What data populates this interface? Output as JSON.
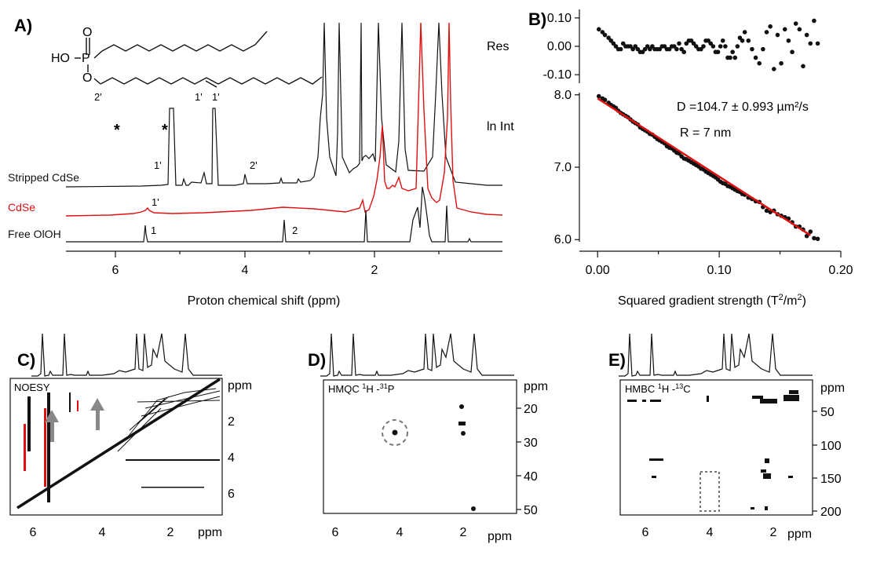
{
  "panels": {
    "A": {
      "letter": "A)",
      "structure": {
        "head": "HO",
        "p_label": "P",
        "o_top": "O",
        "o_bottom": "O",
        "label_2p": "2'",
        "label_1p_a": "1'",
        "label_1p_b": "1'"
      },
      "traces": [
        {
          "name": "Stripped CdSe",
          "color": "#111111"
        },
        {
          "name": "CdSe",
          "color": "#e01010"
        },
        {
          "name": "Free OlOH",
          "color": "#111111"
        }
      ],
      "annotations": {
        "star_1": "*",
        "star_2": "*",
        "stripped_1p": "1'",
        "stripped_2p": "2'",
        "cdse_1p": "1'",
        "free_1": "1",
        "free_2": "2"
      },
      "x_axis": {
        "label": "Proton chemical shift (ppm)",
        "ticks": [
          "6",
          "4",
          "2"
        ]
      }
    },
    "B": {
      "letter": "B)",
      "res_label": "Res",
      "main_label": "ln Int",
      "res_ticks": [
        "0.10",
        "0.00",
        "-0.10"
      ],
      "main_ticks": [
        "8.0",
        "7.0",
        "6.0"
      ],
      "x_ticks": [
        "0.00",
        "0.10",
        "0.20"
      ],
      "x_label_pre": "Squared gradient strength (T",
      "x_label_sup1": "2",
      "x_label_mid": "/m",
      "x_label_sup2": "2",
      "x_label_post": ")",
      "result_D": "D =104.7 ± 0.993 µm²/s",
      "result_R": "R = 7 nm"
    },
    "C": {
      "letter": "C)",
      "title": "NOESY",
      "unit": "ppm",
      "y_ticks": [
        "2",
        "4",
        "6"
      ],
      "x_ticks": [
        "6",
        "4",
        "2"
      ]
    },
    "D": {
      "letter": "D)",
      "title_pre": "HMQC ",
      "title_sup1": "1",
      "title_mid": "H -",
      "title_sup2": "31",
      "title_post": "P",
      "unit": "ppm",
      "y_ticks": [
        "20",
        "30",
        "40",
        "50"
      ],
      "x_ticks": [
        "6",
        "4",
        "2"
      ]
    },
    "E": {
      "letter": "E)",
      "title_pre": "HMBC ",
      "title_sup1": "1",
      "title_mid": "H -",
      "title_sup2": "13",
      "title_post": "C",
      "unit": "ppm",
      "y_ticks": [
        "50",
        "100",
        "150",
        "200"
      ],
      "x_ticks": [
        "6",
        "4",
        "2"
      ]
    }
  },
  "chart_data": {
    "type": "scatter",
    "x": [
      0.001,
      0.004,
      0.006,
      0.009,
      0.011,
      0.013,
      0.015,
      0.017,
      0.019,
      0.021,
      0.023,
      0.025,
      0.027,
      0.029,
      0.031,
      0.033,
      0.035,
      0.037,
      0.039,
      0.041,
      0.043,
      0.045,
      0.047,
      0.049,
      0.051,
      0.053,
      0.055,
      0.057,
      0.059,
      0.061,
      0.063,
      0.065,
      0.067,
      0.069,
      0.071,
      0.073,
      0.075,
      0.077,
      0.079,
      0.081,
      0.083,
      0.085,
      0.087,
      0.089,
      0.091,
      0.093,
      0.095,
      0.097,
      0.099,
      0.101,
      0.103,
      0.105,
      0.107,
      0.109,
      0.111,
      0.113,
      0.115,
      0.117,
      0.119,
      0.121,
      0.124,
      0.127,
      0.13,
      0.133,
      0.136,
      0.139,
      0.142,
      0.145,
      0.148,
      0.151,
      0.154,
      0.157,
      0.16,
      0.163,
      0.166,
      0.169,
      0.172,
      0.175,
      0.178,
      0.181
    ],
    "y": [
      7.98,
      7.95,
      7.93,
      7.89,
      7.86,
      7.84,
      7.82,
      7.78,
      7.75,
      7.73,
      7.71,
      7.69,
      7.66,
      7.63,
      7.61,
      7.59,
      7.55,
      7.53,
      7.51,
      7.49,
      7.46,
      7.45,
      7.42,
      7.39,
      7.37,
      7.35,
      7.33,
      7.29,
      7.27,
      7.26,
      7.23,
      7.2,
      7.19,
      7.15,
      7.12,
      7.11,
      7.09,
      7.07,
      7.05,
      7.03,
      7.01,
      6.98,
      6.97,
      6.94,
      6.92,
      6.9,
      6.88,
      6.86,
      6.83,
      6.8,
      6.78,
      6.77,
      6.74,
      6.73,
      6.71,
      6.69,
      6.67,
      6.66,
      6.63,
      6.62,
      6.58,
      6.56,
      6.53,
      6.52,
      6.45,
      6.4,
      6.38,
      6.4,
      6.35,
      6.33,
      6.31,
      6.29,
      6.24,
      6.18,
      6.18,
      6.14,
      6.05,
      6.11,
      6.02,
      6.01
    ],
    "res": [
      0.06,
      0.05,
      0.04,
      0.03,
      0.02,
      0.01,
      0.0,
      -0.01,
      -0.01,
      0.01,
      0.0,
      0.0,
      0.0,
      -0.01,
      0.0,
      -0.01,
      -0.02,
      -0.02,
      -0.01,
      0.0,
      -0.01,
      0.0,
      -0.01,
      -0.01,
      -0.01,
      0.0,
      0.0,
      -0.01,
      -0.01,
      0.0,
      0.0,
      -0.01,
      0.01,
      -0.01,
      -0.02,
      0.01,
      0.02,
      0.02,
      0.01,
      0.0,
      -0.01,
      -0.01,
      0.0,
      0.02,
      0.02,
      0.01,
      0.0,
      -0.02,
      -0.02,
      0.0,
      0.02,
      0.0,
      -0.04,
      -0.04,
      -0.02,
      -0.04,
      0.0,
      0.03,
      0.02,
      0.05,
      0.02,
      -0.01,
      -0.04,
      -0.06,
      -0.01,
      0.05,
      0.07,
      -0.08,
      0.04,
      -0.06,
      0.06,
      0.02,
      -0.02,
      0.08,
      0.06,
      -0.07,
      0.04,
      0.01,
      0.09,
      0.01
    ],
    "fit": {
      "intercept": 7.95,
      "slope": -10.8,
      "x_range": [
        0.0,
        0.175
      ]
    },
    "xlim": [
      -0.015,
      0.2
    ],
    "ylim": [
      5.97,
      8.03
    ],
    "res_ylim": [
      -0.13,
      0.13
    ]
  }
}
